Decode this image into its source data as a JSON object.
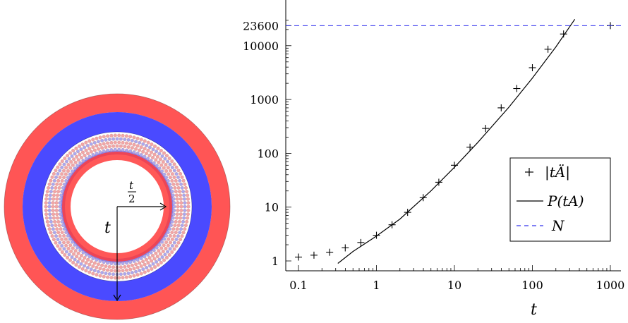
{
  "figure": {
    "diagram": {
      "radius_label": "t",
      "half_radius_label_num": "t",
      "half_radius_label_den": "2",
      "colors": {
        "red": "#ff2a2a",
        "blue": "#2a2aff",
        "pink": "#f2a6a6",
        "lavender": "#a9a9f0"
      }
    },
    "chart_data": {
      "type": "scatter",
      "x_scale": "log",
      "y_scale": "log",
      "xlabel": "t",
      "ylabel": "",
      "xlim": [
        0.08,
        1000
      ],
      "ylim": [
        0.9,
        23600
      ],
      "x_ticks": [
        0.1,
        1,
        10,
        100,
        1000
      ],
      "x_tick_labels": [
        "0.1",
        "1",
        "10",
        "100",
        "1000"
      ],
      "y_ticks": [
        1,
        10,
        100,
        1000,
        10000,
        23600
      ],
      "y_tick_labels": [
        "1",
        "10",
        "100",
        "1000",
        "10000",
        "23600"
      ],
      "legend_position": "bottom-right",
      "series": [
        {
          "name": "|tÄ|",
          "kind": "markers",
          "marker": "+",
          "color": "#000000",
          "x": [
            0.1,
            0.158,
            0.251,
            0.398,
            0.631,
            1,
            1.585,
            2.512,
            3.981,
            6.31,
            10,
            15.85,
            25.12,
            39.81,
            63.1,
            100,
            158.5,
            251.2,
            1000
          ],
          "y": [
            1.18,
            1.28,
            1.45,
            1.75,
            2.2,
            3.0,
            4.7,
            8.0,
            15,
            29,
            60,
            130,
            290,
            700,
            1600,
            3900,
            8600,
            16500,
            23600
          ]
        },
        {
          "name": "P(tA)",
          "kind": "line",
          "color": "#000000",
          "x": [
            0.32,
            0.5,
            1,
            2,
            5,
            10,
            20,
            50,
            100,
            200,
            350
          ],
          "y": [
            0.9,
            1.5,
            2.9,
            6.0,
            20,
            55,
            160,
            720,
            2500,
            9500,
            31000
          ]
        },
        {
          "name": "N",
          "kind": "hline",
          "color": "#3333ee",
          "dash": true,
          "y": 23600
        }
      ]
    }
  }
}
